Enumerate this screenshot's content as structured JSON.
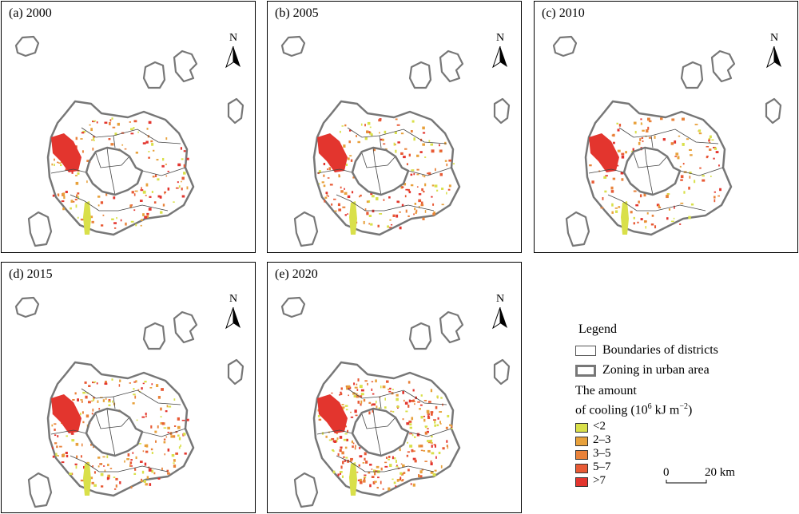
{
  "panels": [
    {
      "label": "(a) 2000"
    },
    {
      "label": "(b) 2005"
    },
    {
      "label": "(c) 2010"
    },
    {
      "label": "(d) 2015"
    },
    {
      "label": "(e) 2020"
    }
  ],
  "north_label": "N",
  "legend": {
    "title": "Legend",
    "boundaries_label": "Boundaries of districts",
    "zoning_label": "Zoning in urban area",
    "cooling_title_line1": "The amount",
    "cooling_title_pre": "of cooling (10",
    "cooling_title_exp": "6",
    "cooling_title_mid": " kJ m",
    "cooling_title_exp2": "−2",
    "cooling_title_post": ")",
    "classes": [
      {
        "label": "<2",
        "color": "#d9e04a"
      },
      {
        "label": "2–3",
        "color": "#e8a13b"
      },
      {
        "label": "3–5",
        "color": "#e9823a"
      },
      {
        "label": "5–7",
        "color": "#e85a35"
      },
      {
        "label": ">7",
        "color": "#e3352e"
      }
    ]
  },
  "scale": {
    "start": "0",
    "end": "20 km"
  }
}
